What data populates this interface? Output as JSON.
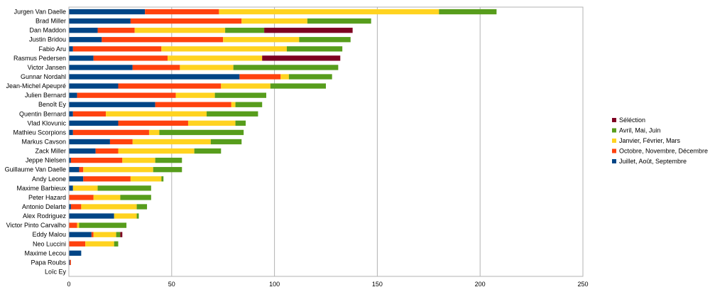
{
  "chart_data": {
    "type": "bar",
    "orientation": "horizontal",
    "stacked": true,
    "grid": true,
    "legend_position": "right",
    "xlim": [
      0,
      250
    ],
    "x_ticks": [
      "0",
      "50",
      "100",
      "150",
      "200",
      "250"
    ],
    "categories": [
      "Jurgen Van Daelle",
      "Brad Miller",
      "Dan Maddon",
      "Justin Bridou",
      "Fabio Aru",
      "Rasmus Pedersen",
      "Victor Jansen",
      "Gunnar Nordahl",
      "Jean-Michel Apeupré",
      "Julien Bernard",
      "Benoît Ey",
      "Quentin Bernard",
      "Vlad Klovunic",
      "Mathieu Scorpions",
      "Markus Cavson",
      "Zack Miller",
      "Jeppe Nielsen",
      "Guillaume Van Daelle",
      "Andy Leone",
      "Maxime Barbieux",
      "Peter Hazard",
      "Antonio Delarte",
      "Alex Rodriguez",
      "Victor Pinto Carvalho",
      "Eddy Malou",
      "Neo Luccini",
      "Maxime Lecou",
      "Papa Roubs",
      "Loïc Ey"
    ],
    "series": [
      {
        "name": "Juillet, Août, Septembre",
        "color": "#004586",
        "values": [
          37,
          30,
          14,
          16,
          2,
          12,
          31,
          83,
          24,
          4,
          42,
          2,
          24,
          2,
          20,
          13,
          1,
          5,
          7,
          2,
          0,
          1,
          22,
          0,
          11,
          0,
          6,
          0.5,
          0
        ]
      },
      {
        "name": "Octobre, Novembre, Décembre",
        "color": "#ff420e",
        "values": [
          36,
          54,
          18,
          59,
          43,
          36,
          23,
          20,
          50,
          48,
          37,
          16,
          34,
          37,
          11,
          11,
          25,
          2,
          23,
          0,
          12,
          5,
          0,
          4,
          1,
          8,
          0,
          0.5,
          0
        ]
      },
      {
        "name": "Janvier, Février, Mars",
        "color": "#ffd320",
        "values": [
          107,
          32,
          44,
          37,
          61,
          46,
          26,
          4,
          24,
          19,
          2,
          49,
          23,
          5,
          38,
          37,
          16,
          34,
          15,
          12,
          13,
          27,
          11,
          1,
          11,
          14,
          0,
          0,
          0
        ]
      },
      {
        "name": "Avril, Mai, Juin",
        "color": "#579d1c",
        "values": [
          28,
          31,
          19,
          25,
          27,
          0,
          51,
          21,
          27,
          25,
          13,
          25,
          5,
          41,
          15,
          13,
          13,
          14,
          1,
          26,
          15,
          5,
          1,
          23,
          2,
          2,
          0,
          0,
          0
        ]
      },
      {
        "name": "Séléction",
        "color": "#7e0021",
        "values": [
          0,
          0,
          43,
          0,
          0,
          38,
          0,
          0,
          0,
          0,
          0,
          0,
          0,
          0,
          0,
          0,
          0,
          0,
          0,
          0,
          0,
          0,
          0,
          0,
          1,
          0,
          0,
          0,
          0
        ]
      }
    ],
    "legend_order": [
      "Séléction",
      "Avril, Mai, Juin",
      "Janvier, Février, Mars",
      "Octobre, Novembre, Décembre",
      "Juillet, Août, Septembre"
    ]
  }
}
